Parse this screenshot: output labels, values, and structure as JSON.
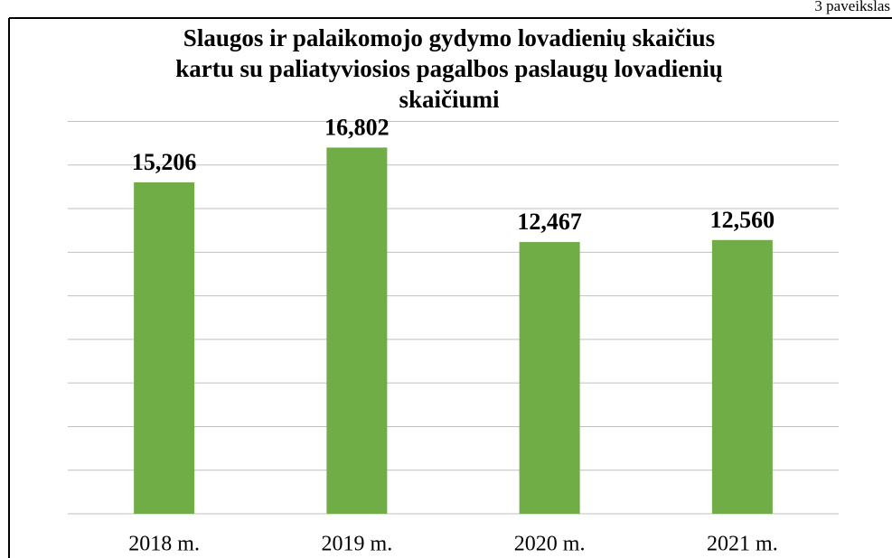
{
  "figure_label": "3 paveikslas",
  "chart_data": {
    "type": "bar",
    "title": [
      "Slaugos ir palaikomojo gydymo lovadienių skaičius",
      "kartu su paliatyviosios pagalbos paslaugų lovadienių",
      "skaičiumi"
    ],
    "categories": [
      "2018 m.",
      "2019 m.",
      "2020 m.",
      "2021 m."
    ],
    "values": [
      15206,
      16802,
      12467,
      12560
    ],
    "value_labels": [
      "15,206",
      "16,802",
      "12,467",
      "12,560"
    ],
    "color": "#70ad47",
    "ylim": [
      0,
      18000
    ],
    "yticks": [
      0,
      2000,
      4000,
      6000,
      8000,
      10000,
      12000,
      14000,
      16000,
      18000
    ],
    "grid": true
  }
}
